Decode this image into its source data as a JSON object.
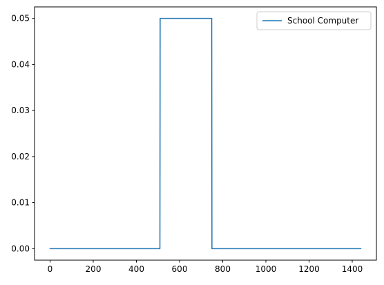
{
  "chart_data": {
    "type": "line",
    "title": "",
    "xlabel": "",
    "ylabel": "",
    "xlim": [
      -72,
      1512
    ],
    "ylim": [
      -0.0025,
      0.0525
    ],
    "xticks": [
      0,
      200,
      400,
      600,
      800,
      1000,
      1200,
      1400
    ],
    "xtick_labels": [
      "0",
      "200",
      "400",
      "600",
      "800",
      "1000",
      "1200",
      "1400"
    ],
    "yticks": [
      0.0,
      0.01,
      0.02,
      0.03,
      0.04,
      0.05
    ],
    "ytick_labels": [
      "0.00",
      "0.01",
      "0.02",
      "0.03",
      "0.04",
      "0.05"
    ],
    "grid": false,
    "legend_position": "top-right",
    "series": [
      {
        "name": "School Computer",
        "color": "#1f77b4",
        "x": [
          0,
          509,
          510,
          749,
          750,
          1440
        ],
        "y": [
          0.0,
          0.0,
          0.05,
          0.05,
          0.0,
          0.0
        ]
      }
    ]
  }
}
